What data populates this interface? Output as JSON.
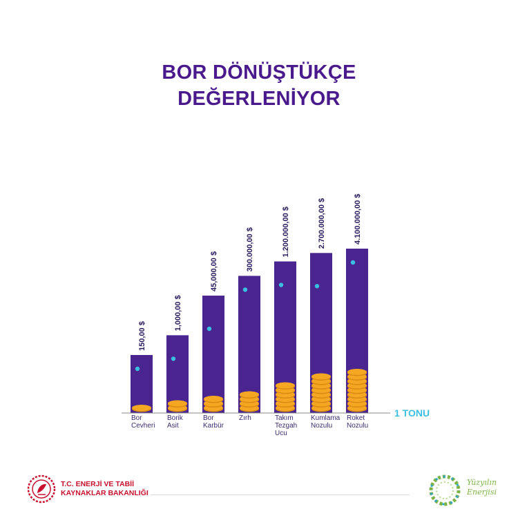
{
  "header": {
    "title_line1": "BOR DÖNÜŞTÜKÇE",
    "title_line2": "DEĞERLENİYOR"
  },
  "chart_data": {
    "type": "bar",
    "categories": [
      "Bor\nCevheri",
      "Borik\nAsit",
      "Bor\nKarbür",
      "Zırh",
      "Takım\nTezgah\nUcu",
      "Kumlama\nNozulu",
      "Roket\nNozulu"
    ],
    "values": [
      150,
      1000,
      45000,
      300000,
      1200000,
      2700000,
      4100000
    ],
    "value_labels": [
      "150,00 $",
      "1,000,00 $",
      "45,000,00 $",
      "300.000,00 $",
      "1.200.000,00 $",
      "2.700.000,00 $",
      "4.100.000,00 $"
    ],
    "unit_label": "1 TONU",
    "bar_color": "#4a2590",
    "coin_color": "#f5a623",
    "line_color": "#3bbfe0"
  },
  "footer": {
    "ministry_name": "T.C. ENERJİ VE TABİİ\nKAYNAKLAR BAKANLIĞI",
    "brand_name": "Yüzyılın\nEnerjisi",
    "ministry_color": "#c8102e",
    "brand_color": "#7cb342"
  }
}
